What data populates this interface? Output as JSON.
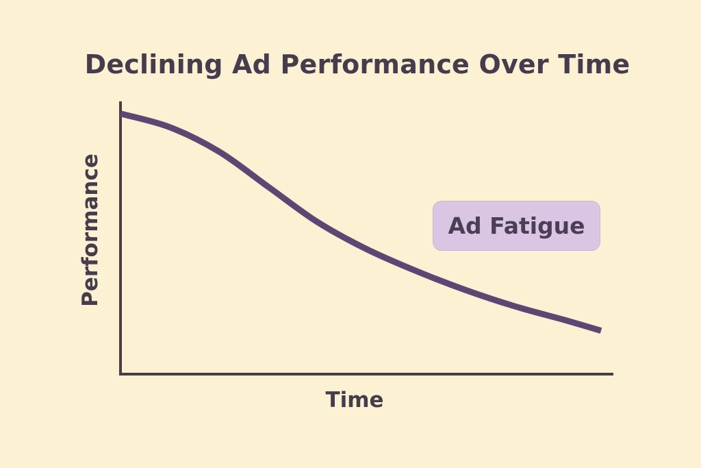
{
  "colors": {
    "background": "#fcf1d2",
    "axis": "#463c4e",
    "line": "#5e4674",
    "annotation_fill": "#dac6e4",
    "text": "#463c4e"
  },
  "chart_data": {
    "type": "line",
    "title": "Declining Ad Performance Over Time",
    "xlabel": "Time",
    "ylabel": "Performance",
    "xlim": [
      0,
      10
    ],
    "ylim": [
      0,
      10
    ],
    "grid": false,
    "ticks": false,
    "annotations": [
      {
        "text": "Ad Fatigue"
      }
    ],
    "series": [
      {
        "x": [
          0,
          1,
          2,
          3,
          4,
          5,
          6,
          7,
          8,
          9,
          9.75
        ],
        "values": [
          9.6,
          9.1,
          8.2,
          6.9,
          5.6,
          4.6,
          3.8,
          3.1,
          2.5,
          2.0,
          1.6
        ]
      }
    ]
  }
}
